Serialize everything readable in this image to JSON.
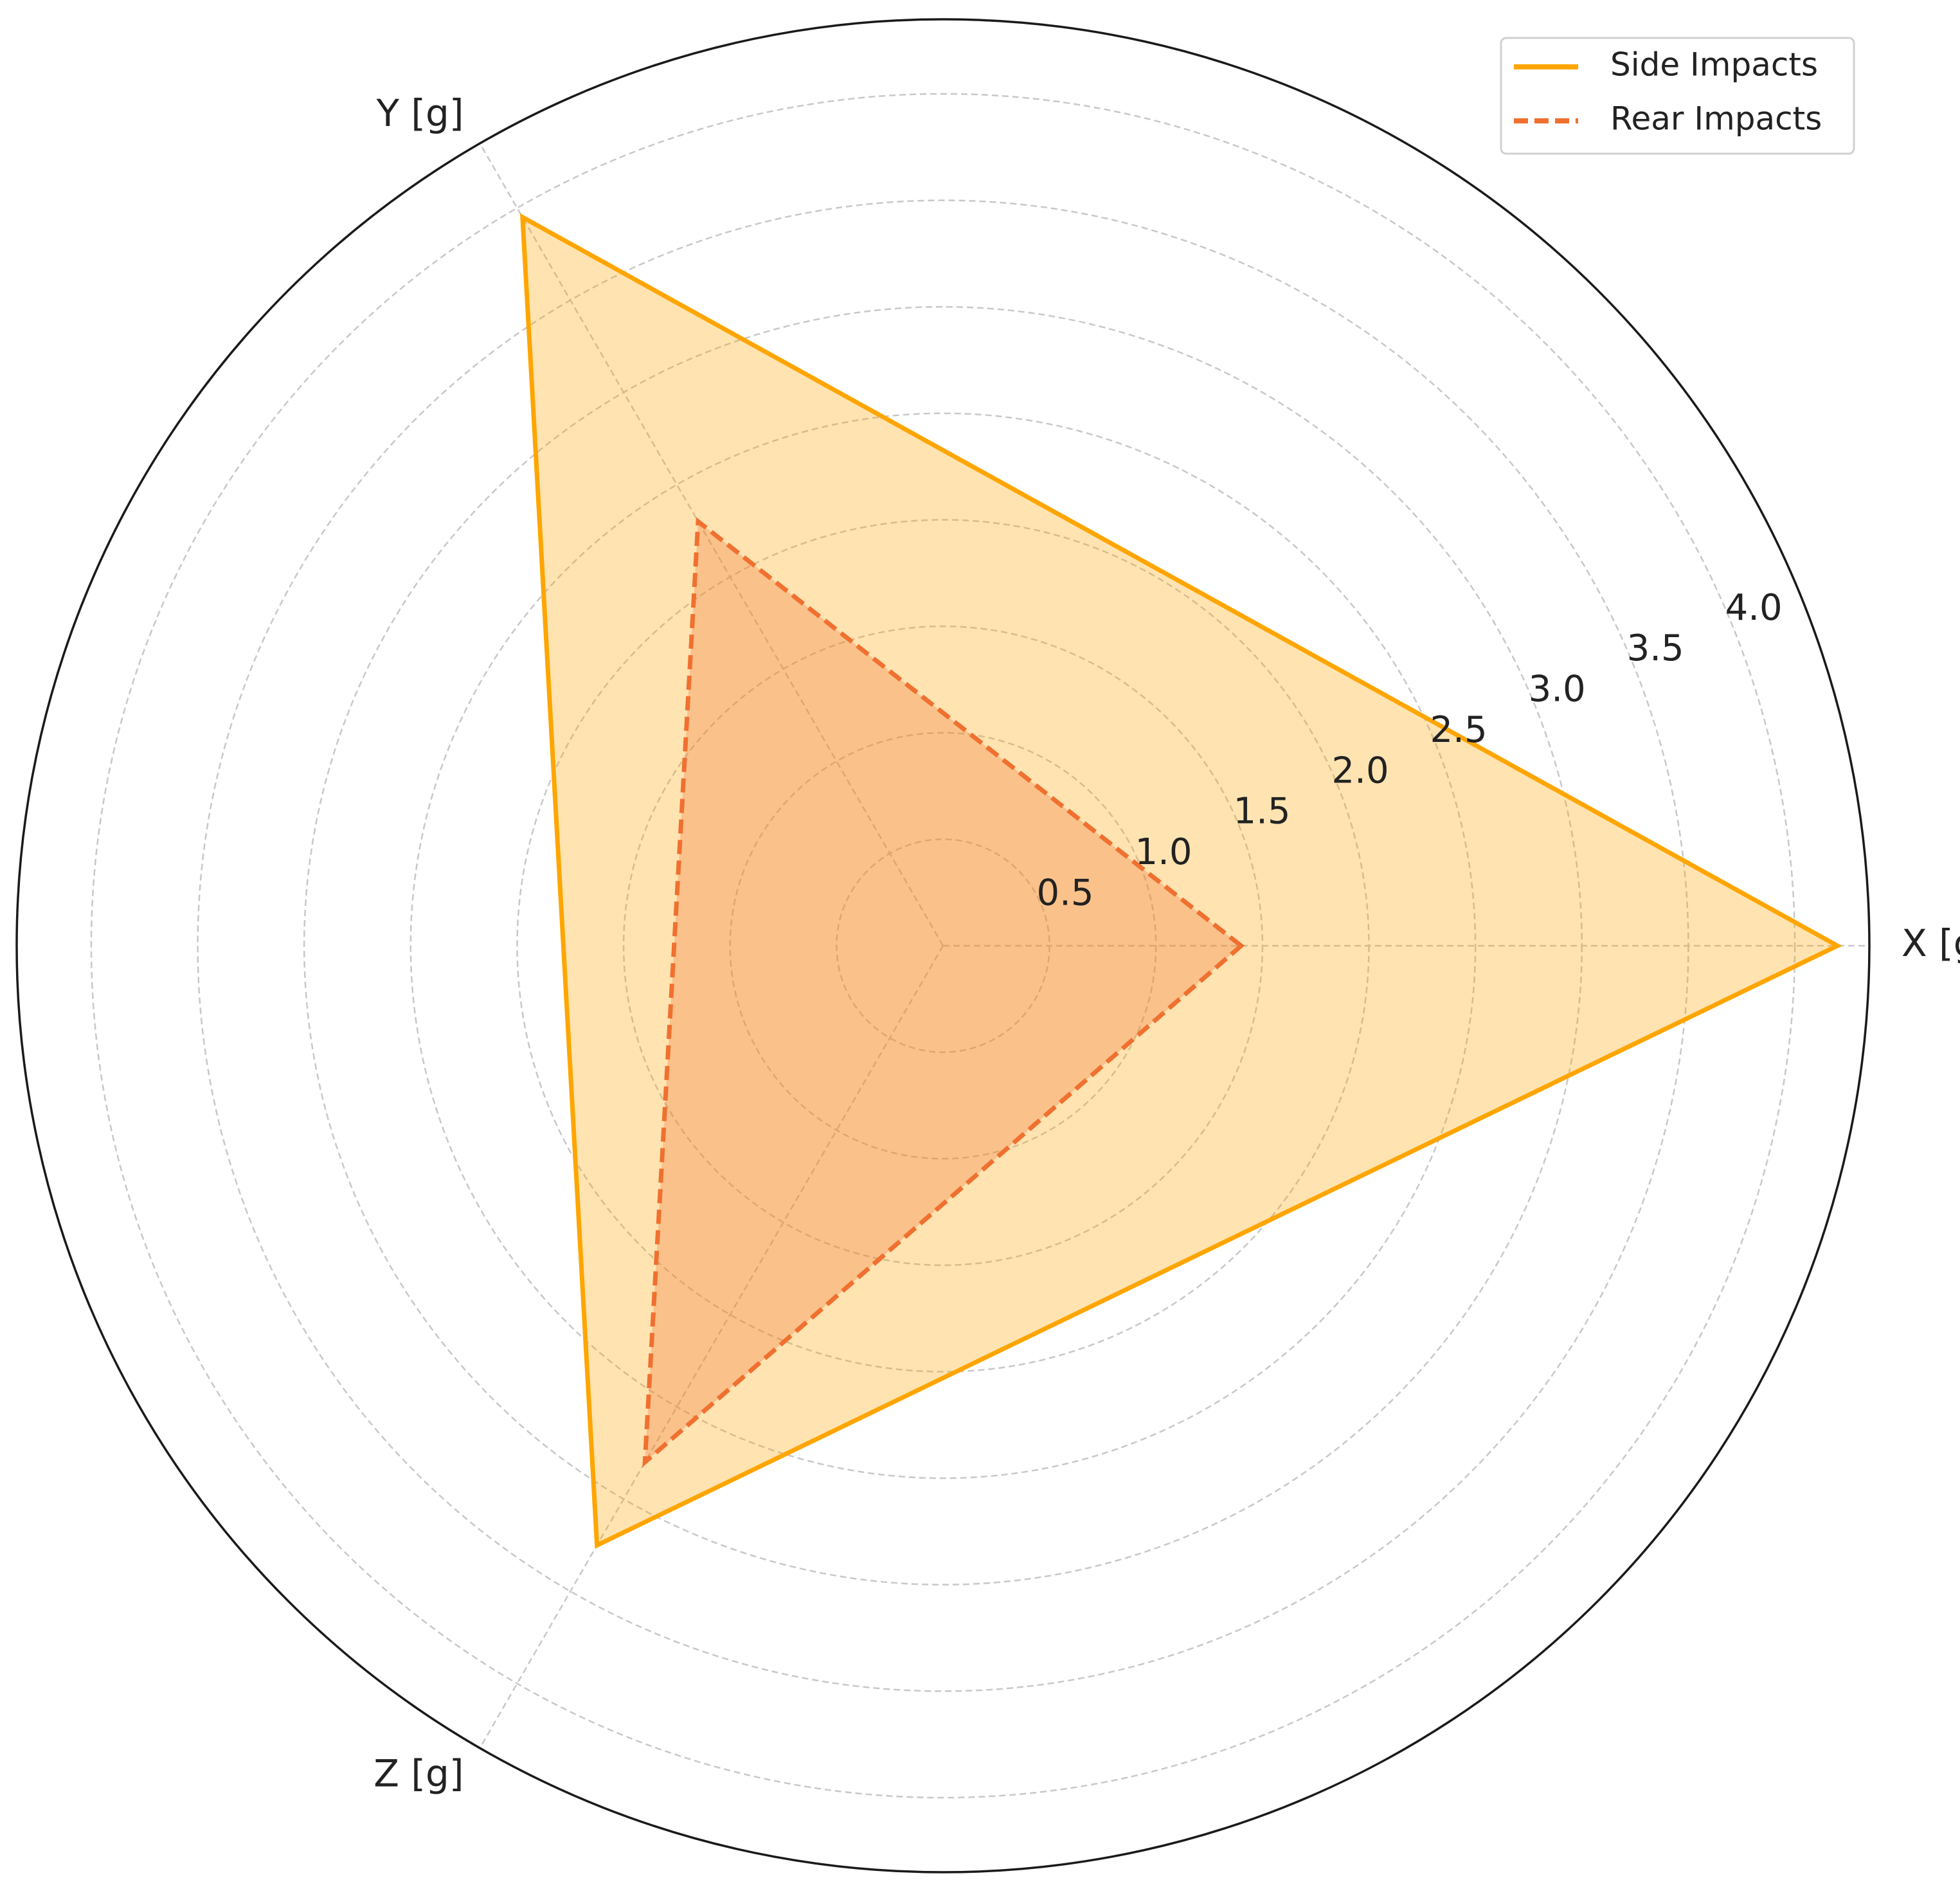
{
  "chart_data": {
    "type": "radar",
    "categories": [
      "X [g]",
      "Y [g]",
      "Z [g]"
    ],
    "series": [
      {
        "name": "Side Impacts",
        "color": "#ffa500",
        "line_style": "solid",
        "values": [
          4.2,
          3.95,
          3.25
        ]
      },
      {
        "name": "Rear Impacts",
        "color": "#f07030",
        "line_style": "dashed",
        "values": [
          1.4,
          2.3,
          2.8
        ]
      }
    ],
    "ylim": [
      0,
      4.35
    ],
    "yticks": [
      0.5,
      1.0,
      1.5,
      2.0,
      2.5,
      3.0,
      3.5,
      4.0
    ],
    "grid": true,
    "legend": "upper right"
  }
}
